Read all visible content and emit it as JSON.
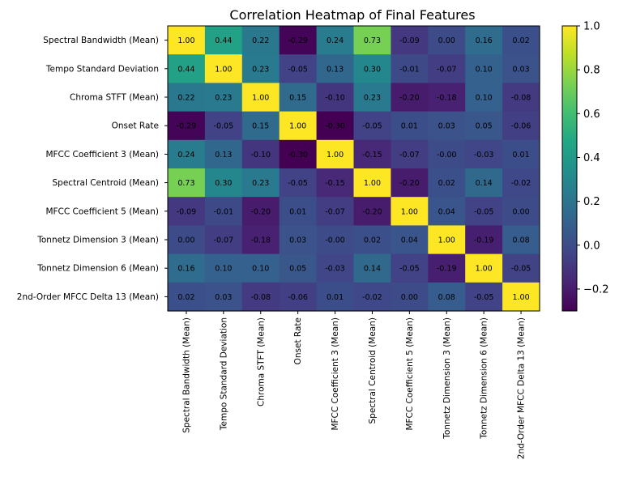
{
  "chart_data": {
    "type": "heatmap",
    "title": "Correlation Heatmap of Final Features",
    "xlabel": "",
    "ylabel": "",
    "rows": [
      "Spectral Bandwidth (Mean)",
      "Tempo Standard Deviation",
      "Chroma STFT (Mean)",
      "Onset Rate",
      "MFCC Coefficient 3 (Mean)",
      "Spectral Centroid (Mean)",
      "MFCC Coefficient 5 (Mean)",
      "Tonnetz Dimension 3 (Mean)",
      "Tonnetz Dimension 6 (Mean)",
      "2nd-Order MFCC Delta 13 (Mean)"
    ],
    "columns": [
      "Spectral Bandwidth (Mean)",
      "Tempo Standard Deviation",
      "Chroma STFT (Mean)",
      "Onset Rate",
      "MFCC Coefficient 3 (Mean)",
      "Spectral Centroid (Mean)",
      "MFCC Coefficient 5 (Mean)",
      "Tonnetz Dimension 3 (Mean)",
      "Tonnetz Dimension 6 (Mean)",
      "2nd-Order MFCC Delta 13 (Mean)"
    ],
    "values": [
      [
        1.0,
        0.44,
        0.22,
        -0.29,
        0.24,
        0.73,
        -0.09,
        0.0,
        0.16,
        0.02
      ],
      [
        0.44,
        1.0,
        0.23,
        -0.05,
        0.13,
        0.3,
        -0.01,
        -0.07,
        0.1,
        0.03
      ],
      [
        0.22,
        0.23,
        1.0,
        0.15,
        -0.1,
        0.23,
        -0.2,
        -0.18,
        0.1,
        -0.08
      ],
      [
        -0.29,
        -0.05,
        0.15,
        1.0,
        -0.3,
        -0.05,
        0.01,
        0.03,
        0.05,
        -0.06
      ],
      [
        0.24,
        0.13,
        -0.1,
        -0.3,
        1.0,
        -0.15,
        -0.07,
        -0.0,
        -0.03,
        0.01
      ],
      [
        0.73,
        0.3,
        0.23,
        -0.05,
        -0.15,
        1.0,
        -0.2,
        0.02,
        0.14,
        -0.02
      ],
      [
        -0.09,
        -0.01,
        -0.2,
        0.01,
        -0.07,
        -0.2,
        1.0,
        0.04,
        -0.05,
        0.0
      ],
      [
        0.0,
        -0.07,
        -0.18,
        0.03,
        -0.0,
        0.02,
        0.04,
        1.0,
        -0.19,
        0.08
      ],
      [
        0.16,
        0.1,
        0.1,
        0.05,
        -0.03,
        0.14,
        -0.05,
        -0.19,
        1.0,
        -0.05
      ],
      [
        0.02,
        0.03,
        -0.08,
        -0.06,
        0.01,
        -0.02,
        0.0,
        0.08,
        -0.05,
        1.0
      ]
    ],
    "cell_labels": [
      [
        "1.00",
        "0.44",
        "0.22",
        "-0.29",
        "0.24",
        "0.73",
        "-0.09",
        "0.00",
        "0.16",
        "0.02"
      ],
      [
        "0.44",
        "1.00",
        "0.23",
        "-0.05",
        "0.13",
        "0.30",
        "-0.01",
        "-0.07",
        "0.10",
        "0.03"
      ],
      [
        "0.22",
        "0.23",
        "1.00",
        "0.15",
        "-0.10",
        "0.23",
        "-0.20",
        "-0.18",
        "0.10",
        "-0.08"
      ],
      [
        "-0.29",
        "-0.05",
        "0.15",
        "1.00",
        "-0.30",
        "-0.05",
        "0.01",
        "0.03",
        "0.05",
        "-0.06"
      ],
      [
        "0.24",
        "0.13",
        "-0.10",
        "-0.30",
        "1.00",
        "-0.15",
        "-0.07",
        "-0.00",
        "-0.03",
        "0.01"
      ],
      [
        "0.73",
        "0.30",
        "0.23",
        "-0.05",
        "-0.15",
        "1.00",
        "-0.20",
        "0.02",
        "0.14",
        "-0.02"
      ],
      [
        "-0.09",
        "-0.01",
        "-0.20",
        "0.01",
        "-0.07",
        "-0.20",
        "1.00",
        "0.04",
        "-0.05",
        "0.00"
      ],
      [
        "0.00",
        "-0.07",
        "-0.18",
        "0.03",
        "-0.00",
        "0.02",
        "0.04",
        "1.00",
        "-0.19",
        "0.08"
      ],
      [
        "0.16",
        "0.10",
        "0.10",
        "0.05",
        "-0.03",
        "0.14",
        "-0.05",
        "-0.19",
        "1.00",
        "-0.05"
      ],
      [
        "0.02",
        "0.03",
        "-0.08",
        "-0.06",
        "0.01",
        "-0.02",
        "0.00",
        "0.08",
        "-0.05",
        "1.00"
      ]
    ],
    "colormap": "viridis",
    "vmin": -0.3,
    "vmax": 1.0,
    "colorbar": {
      "position": "right",
      "ticks": [
        -0.2,
        0.0,
        0.2,
        0.4,
        0.6,
        0.8,
        1.0
      ],
      "tick_labels": [
        "−0.2",
        "0.0",
        "0.2",
        "0.4",
        "0.6",
        "0.8",
        "1.0"
      ]
    },
    "grid": false,
    "legend": "none"
  }
}
